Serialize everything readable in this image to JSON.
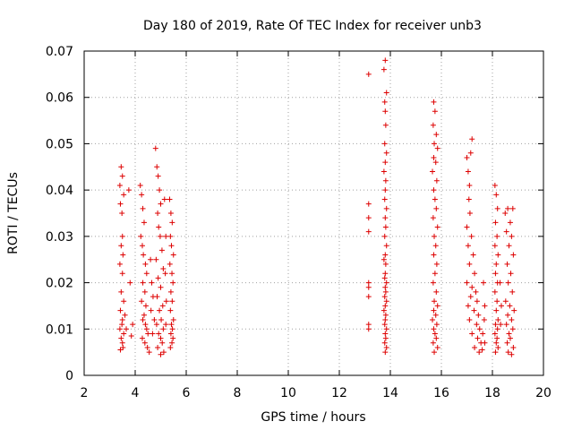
{
  "chart_data": {
    "type": "scatter",
    "title": "Day 180 of 2019, Rate Of TEC Index for receiver unb3",
    "xlabel": "GPS time / hours",
    "ylabel": "ROTI / TECUs",
    "xlim": [
      2,
      20
    ],
    "ylim": [
      0,
      0.07
    ],
    "x_ticks": [
      "2",
      "4",
      "6",
      "8",
      "10",
      "12",
      "14",
      "16",
      "18",
      "20"
    ],
    "y_ticks": [
      "0",
      "0.01",
      "0.02",
      "0.03",
      "0.04",
      "0.05",
      "0.06",
      "0.07"
    ],
    "grid": true,
    "marker": "+",
    "colors": {
      "points": "#dd0000",
      "grid": "#a0a0a0",
      "axes": "#000000"
    },
    "series": [
      {
        "name": "ROTI",
        "points": [
          [
            3.45,
            0.045
          ],
          [
            3.5,
            0.043
          ],
          [
            3.4,
            0.041
          ],
          [
            3.55,
            0.039
          ],
          [
            3.42,
            0.037
          ],
          [
            3.48,
            0.035
          ],
          [
            3.5,
            0.03
          ],
          [
            3.45,
            0.028
          ],
          [
            3.52,
            0.026
          ],
          [
            3.4,
            0.024
          ],
          [
            3.5,
            0.022
          ],
          [
            3.45,
            0.018
          ],
          [
            3.55,
            0.016
          ],
          [
            3.42,
            0.014
          ],
          [
            3.5,
            0.012
          ],
          [
            3.48,
            0.011
          ],
          [
            3.4,
            0.01
          ],
          [
            3.55,
            0.009
          ],
          [
            3.45,
            0.008
          ],
          [
            3.5,
            0.007
          ],
          [
            3.42,
            0.0055
          ],
          [
            3.52,
            0.006
          ],
          [
            3.6,
            0.013
          ],
          [
            3.65,
            0.01
          ],
          [
            3.75,
            0.04
          ],
          [
            3.8,
            0.02
          ],
          [
            3.85,
            0.0085
          ],
          [
            3.9,
            0.011
          ],
          [
            4.2,
            0.041
          ],
          [
            4.25,
            0.039
          ],
          [
            4.3,
            0.036
          ],
          [
            4.35,
            0.033
          ],
          [
            4.22,
            0.03
          ],
          [
            4.28,
            0.028
          ],
          [
            4.32,
            0.026
          ],
          [
            4.4,
            0.024
          ],
          [
            4.45,
            0.022
          ],
          [
            4.3,
            0.02
          ],
          [
            4.38,
            0.018
          ],
          [
            4.25,
            0.016
          ],
          [
            4.42,
            0.015
          ],
          [
            4.35,
            0.013
          ],
          [
            4.3,
            0.012
          ],
          [
            4.4,
            0.011
          ],
          [
            4.45,
            0.01
          ],
          [
            4.5,
            0.009
          ],
          [
            4.28,
            0.008
          ],
          [
            4.38,
            0.007
          ],
          [
            4.48,
            0.006
          ],
          [
            4.55,
            0.005
          ],
          [
            4.6,
            0.025
          ],
          [
            4.65,
            0.02
          ],
          [
            4.7,
            0.017
          ],
          [
            4.62,
            0.014
          ],
          [
            4.75,
            0.012
          ],
          [
            4.68,
            0.009
          ],
          [
            4.8,
            0.049
          ],
          [
            4.85,
            0.045
          ],
          [
            4.9,
            0.043
          ],
          [
            4.95,
            0.04
          ],
          [
            5.0,
            0.037
          ],
          [
            4.88,
            0.035
          ],
          [
            4.92,
            0.032
          ],
          [
            4.98,
            0.03
          ],
          [
            5.05,
            0.027
          ],
          [
            4.82,
            0.025
          ],
          [
            5.1,
            0.023
          ],
          [
            4.9,
            0.021
          ],
          [
            5.0,
            0.019
          ],
          [
            4.86,
            0.017
          ],
          [
            5.08,
            0.015
          ],
          [
            4.95,
            0.014
          ],
          [
            5.02,
            0.012
          ],
          [
            4.84,
            0.011
          ],
          [
            5.1,
            0.01
          ],
          [
            4.92,
            0.009
          ],
          [
            5.0,
            0.008
          ],
          [
            5.06,
            0.007
          ],
          [
            4.88,
            0.006
          ],
          [
            5.12,
            0.005
          ],
          [
            5.0,
            0.0045
          ],
          [
            5.15,
            0.038
          ],
          [
            5.2,
            0.03
          ],
          [
            5.18,
            0.022
          ],
          [
            5.22,
            0.016
          ],
          [
            5.2,
            0.011
          ],
          [
            5.35,
            0.038
          ],
          [
            5.4,
            0.035
          ],
          [
            5.45,
            0.033
          ],
          [
            5.38,
            0.03
          ],
          [
            5.42,
            0.028
          ],
          [
            5.5,
            0.026
          ],
          [
            5.36,
            0.024
          ],
          [
            5.44,
            0.022
          ],
          [
            5.48,
            0.02
          ],
          [
            5.4,
            0.018
          ],
          [
            5.45,
            0.016
          ],
          [
            5.38,
            0.014
          ],
          [
            5.5,
            0.012
          ],
          [
            5.42,
            0.011
          ],
          [
            5.46,
            0.01
          ],
          [
            5.4,
            0.009
          ],
          [
            5.48,
            0.008
          ],
          [
            5.44,
            0.007
          ],
          [
            5.38,
            0.006
          ],
          [
            13.15,
            0.065
          ],
          [
            13.15,
            0.037
          ],
          [
            13.15,
            0.034
          ],
          [
            13.15,
            0.031
          ],
          [
            13.15,
            0.02
          ],
          [
            13.15,
            0.019
          ],
          [
            13.15,
            0.017
          ],
          [
            13.15,
            0.011
          ],
          [
            13.15,
            0.01
          ],
          [
            13.8,
            0.068
          ],
          [
            13.75,
            0.066
          ],
          [
            13.85,
            0.061
          ],
          [
            13.78,
            0.059
          ],
          [
            13.8,
            0.057
          ],
          [
            13.82,
            0.054
          ],
          [
            13.78,
            0.05
          ],
          [
            13.85,
            0.048
          ],
          [
            13.8,
            0.046
          ],
          [
            13.75,
            0.044
          ],
          [
            13.82,
            0.042
          ],
          [
            13.8,
            0.04
          ],
          [
            13.78,
            0.038
          ],
          [
            13.85,
            0.036
          ],
          [
            13.8,
            0.034
          ],
          [
            13.82,
            0.032
          ],
          [
            13.78,
            0.03
          ],
          [
            13.85,
            0.028
          ],
          [
            13.8,
            0.026
          ],
          [
            13.75,
            0.025
          ],
          [
            13.82,
            0.024
          ],
          [
            13.8,
            0.022
          ],
          [
            13.78,
            0.021
          ],
          [
            13.85,
            0.02
          ],
          [
            13.8,
            0.019
          ],
          [
            13.82,
            0.018
          ],
          [
            13.78,
            0.017
          ],
          [
            13.85,
            0.016
          ],
          [
            13.8,
            0.015
          ],
          [
            13.75,
            0.014
          ],
          [
            13.82,
            0.013
          ],
          [
            13.8,
            0.012
          ],
          [
            13.78,
            0.011
          ],
          [
            13.85,
            0.01
          ],
          [
            13.8,
            0.009
          ],
          [
            13.82,
            0.008
          ],
          [
            13.78,
            0.007
          ],
          [
            13.85,
            0.006
          ],
          [
            13.8,
            0.005
          ],
          [
            15.7,
            0.059
          ],
          [
            15.75,
            0.057
          ],
          [
            15.68,
            0.054
          ],
          [
            15.8,
            0.052
          ],
          [
            15.72,
            0.05
          ],
          [
            15.85,
            0.049
          ],
          [
            15.7,
            0.047
          ],
          [
            15.78,
            0.046
          ],
          [
            15.65,
            0.044
          ],
          [
            15.82,
            0.042
          ],
          [
            15.7,
            0.04
          ],
          [
            15.75,
            0.038
          ],
          [
            15.8,
            0.036
          ],
          [
            15.68,
            0.034
          ],
          [
            15.85,
            0.032
          ],
          [
            15.72,
            0.03
          ],
          [
            15.78,
            0.028
          ],
          [
            15.7,
            0.026
          ],
          [
            15.82,
            0.024
          ],
          [
            15.75,
            0.022
          ],
          [
            15.68,
            0.02
          ],
          [
            15.8,
            0.018
          ],
          [
            15.72,
            0.016
          ],
          [
            15.85,
            0.015
          ],
          [
            15.7,
            0.014
          ],
          [
            15.78,
            0.013
          ],
          [
            15.65,
            0.012
          ],
          [
            15.82,
            0.011
          ],
          [
            15.7,
            0.01
          ],
          [
            15.75,
            0.009
          ],
          [
            15.8,
            0.008
          ],
          [
            15.68,
            0.007
          ],
          [
            15.85,
            0.006
          ],
          [
            15.72,
            0.005
          ],
          [
            17.0,
            0.047
          ],
          [
            17.05,
            0.044
          ],
          [
            17.1,
            0.041
          ],
          [
            17.2,
            0.051
          ],
          [
            17.15,
            0.048
          ],
          [
            17.08,
            0.038
          ],
          [
            17.12,
            0.035
          ],
          [
            17.0,
            0.032
          ],
          [
            17.18,
            0.03
          ],
          [
            17.05,
            0.028
          ],
          [
            17.25,
            0.026
          ],
          [
            17.1,
            0.024
          ],
          [
            17.3,
            0.022
          ],
          [
            17.0,
            0.02
          ],
          [
            17.2,
            0.019
          ],
          [
            17.35,
            0.018
          ],
          [
            17.15,
            0.017
          ],
          [
            17.4,
            0.016
          ],
          [
            17.05,
            0.015
          ],
          [
            17.28,
            0.014
          ],
          [
            17.45,
            0.013
          ],
          [
            17.1,
            0.012
          ],
          [
            17.38,
            0.011
          ],
          [
            17.5,
            0.01
          ],
          [
            17.2,
            0.009
          ],
          [
            17.42,
            0.008
          ],
          [
            17.55,
            0.007
          ],
          [
            17.3,
            0.006
          ],
          [
            17.6,
            0.0055
          ],
          [
            17.48,
            0.005
          ],
          [
            17.65,
            0.02
          ],
          [
            17.7,
            0.015
          ],
          [
            17.68,
            0.012
          ],
          [
            17.62,
            0.009
          ],
          [
            17.7,
            0.007
          ],
          [
            18.1,
            0.041
          ],
          [
            18.15,
            0.039
          ],
          [
            18.2,
            0.036
          ],
          [
            18.12,
            0.033
          ],
          [
            18.18,
            0.03
          ],
          [
            18.1,
            0.028
          ],
          [
            18.22,
            0.026
          ],
          [
            18.15,
            0.024
          ],
          [
            18.12,
            0.022
          ],
          [
            18.2,
            0.02
          ],
          [
            18.1,
            0.018
          ],
          [
            18.18,
            0.016
          ],
          [
            18.15,
            0.014
          ],
          [
            18.22,
            0.012
          ],
          [
            18.12,
            0.011
          ],
          [
            18.2,
            0.01
          ],
          [
            18.1,
            0.009
          ],
          [
            18.18,
            0.008
          ],
          [
            18.15,
            0.007
          ],
          [
            18.22,
            0.006
          ],
          [
            18.12,
            0.005
          ],
          [
            18.3,
            0.02
          ],
          [
            18.35,
            0.015
          ],
          [
            18.32,
            0.011
          ],
          [
            18.5,
            0.035
          ],
          [
            18.6,
            0.036
          ],
          [
            18.7,
            0.033
          ],
          [
            18.8,
            0.036
          ],
          [
            18.55,
            0.031
          ],
          [
            18.75,
            0.03
          ],
          [
            18.65,
            0.028
          ],
          [
            18.82,
            0.026
          ],
          [
            18.58,
            0.024
          ],
          [
            18.72,
            0.022
          ],
          [
            18.62,
            0.02
          ],
          [
            18.78,
            0.018
          ],
          [
            18.52,
            0.016
          ],
          [
            18.68,
            0.015
          ],
          [
            18.85,
            0.014
          ],
          [
            18.6,
            0.013
          ],
          [
            18.75,
            0.012
          ],
          [
            18.55,
            0.011
          ],
          [
            18.8,
            0.01
          ],
          [
            18.65,
            0.009
          ],
          [
            18.7,
            0.008
          ],
          [
            18.58,
            0.007
          ],
          [
            18.82,
            0.006
          ],
          [
            18.62,
            0.005
          ],
          [
            18.75,
            0.0045
          ]
        ]
      }
    ]
  }
}
